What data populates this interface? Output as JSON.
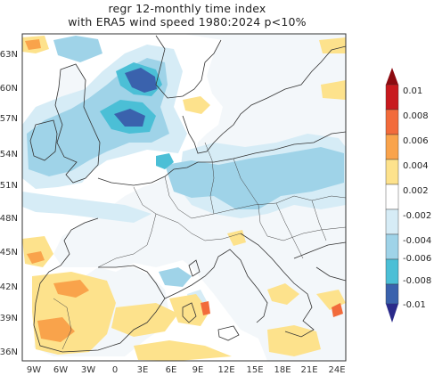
{
  "title": {
    "line1": "regr 12-monthly time index",
    "line2": "with  ERA5 wind speed 1980:2024 p<10%"
  },
  "axes": {
    "lat_labels": [
      "63N",
      "60N",
      "57N",
      "54N",
      "51N",
      "48N",
      "45N",
      "42N",
      "39N",
      "36N"
    ],
    "lon_labels": [
      "9W",
      "6W",
      "3W",
      "0",
      "3E",
      "6E",
      "9E",
      "12E",
      "15E",
      "18E",
      "21E",
      "24E"
    ]
  },
  "colorbar": {
    "labels": [
      "0.01",
      "0.008",
      "0.006",
      "0.004",
      "0.002",
      "-0.002",
      "-0.004",
      "-0.006",
      "-0.008",
      "-0.01"
    ],
    "colors": [
      "#c8191e",
      "#f26b3b",
      "#f9a34b",
      "#fde28c",
      "#ffffff",
      "#d6ecf6",
      "#9fd3e8",
      "#4bbfd6",
      "#3a62ad"
    ],
    "top_triangle": "#8c0a10",
    "bottom_triangle": "#2a2a8a"
  },
  "palette": {
    "sea": "#ffffff",
    "land": "#f3f7fa",
    "pale_blue": "#d6ecf6",
    "light_blue": "#9fd3e8",
    "mid_blue": "#4bbfd6",
    "dark_blue": "#3a62ad",
    "pale_orange": "#fde28c",
    "orange": "#f9a34b",
    "red_orange": "#f26b3b",
    "coast": "#333333"
  }
}
